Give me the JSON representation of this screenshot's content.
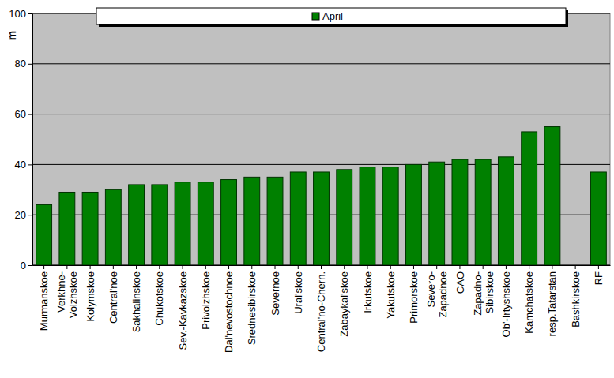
{
  "chart_data": {
    "type": "bar",
    "y_label": "m",
    "categories": [
      "Murmanskoe",
      "Verkhne-\nVolzhskoe",
      "Kolymskoe",
      "Central'noe",
      "Sakhalinskoe",
      "Chukotskoe",
      "Sev.-Kavkazskoe",
      "Privolzhskoe",
      "Dal'nevostochnoe",
      "Srednesibirskoe",
      "Severnoe",
      "Ural'skoe",
      "Central'no-Chern.",
      "Zabaykal'skoe",
      "Irkutskoe",
      "Yakutskoe",
      "Primorskoe",
      "Severo-\nZapadnoe",
      "CAO",
      "Zapadno-\nSibirskoe",
      "Ob'-Irtyshskoe",
      "Kamchatskoe",
      "resp.Tatarstan",
      "Bashkirskoe",
      "RF"
    ],
    "series": [
      {
        "name": "April",
        "color": "#008000",
        "values": [
          24,
          29,
          29,
          30,
          32,
          32,
          33,
          33,
          34,
          35,
          35,
          37,
          37,
          38,
          39,
          39,
          40,
          41,
          42,
          42,
          43,
          53,
          55,
          null,
          37
        ]
      }
    ],
    "ylim": [
      0,
      100
    ],
    "yticks": [
      0,
      20,
      40,
      60,
      80,
      100
    ],
    "grid": true,
    "legend": "top"
  }
}
